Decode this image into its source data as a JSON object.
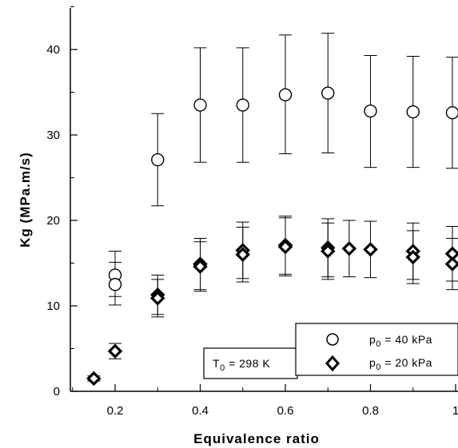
{
  "chart_data": {
    "type": "scatter",
    "xlabel": "Equivalence ratio",
    "ylabel": "Kg (MPa.m/s)",
    "xlim": [
      0.1,
      1.0
    ],
    "ylim": [
      0,
      45
    ],
    "x_ticks": [
      "0.2",
      "0.4",
      "0.6",
      "0.8",
      "1"
    ],
    "y_ticks": [
      "0",
      "10",
      "20",
      "30",
      "40"
    ],
    "grid": false,
    "legend_position": "bottom-right",
    "annotation": {
      "text": "T",
      "sub": "0",
      "rest": " = 298 K"
    },
    "series": [
      {
        "name": "p0 = 40 kPa",
        "label_main": "p",
        "label_sub": "0",
        "label_rest": " = 40 kPa",
        "marker": "circle",
        "points": [
          {
            "x": 0.2,
            "y": 13.6,
            "err_low": 11.1,
            "err_high": 16.4
          },
          {
            "x": 0.2,
            "y": 12.5,
            "err_low": 10.1,
            "err_high": 15.1
          },
          {
            "x": 0.3,
            "y": 27.1,
            "err_low": 21.7,
            "err_high": 32.5
          },
          {
            "x": 0.4,
            "y": 33.5,
            "err_low": 26.8,
            "err_high": 40.2
          },
          {
            "x": 0.5,
            "y": 33.5,
            "err_low": 26.8,
            "err_high": 40.2
          },
          {
            "x": 0.6,
            "y": 34.7,
            "err_low": 27.8,
            "err_high": 41.7
          },
          {
            "x": 0.7,
            "y": 34.9,
            "err_low": 27.9,
            "err_high": 41.9
          },
          {
            "x": 0.8,
            "y": 32.8,
            "err_low": 26.2,
            "err_high": 39.3
          },
          {
            "x": 0.9,
            "y": 32.7,
            "err_low": 26.2,
            "err_high": 39.2
          },
          {
            "x": 1.0,
            "y": 32.6,
            "err_low": 26.1,
            "err_high": 39.1
          }
        ]
      },
      {
        "name": "p0 = 20 kPa",
        "label_main": "p",
        "label_sub": "0",
        "label_rest": " = 20 kPa",
        "marker": "diamond",
        "points": [
          {
            "x": 0.15,
            "y": 1.5,
            "err_low": 1.2,
            "err_high": 1.8
          },
          {
            "x": 0.2,
            "y": 4.7,
            "err_low": 3.8,
            "err_high": 5.6
          },
          {
            "x": 0.3,
            "y": 11.3,
            "err_low": 9.0,
            "err_high": 13.6
          },
          {
            "x": 0.3,
            "y": 10.9,
            "err_low": 8.7,
            "err_high": 13.1
          },
          {
            "x": 0.4,
            "y": 14.9,
            "err_low": 11.9,
            "err_high": 17.9
          },
          {
            "x": 0.4,
            "y": 14.6,
            "err_low": 11.7,
            "err_high": 17.5
          },
          {
            "x": 0.5,
            "y": 16.5,
            "err_low": 13.2,
            "err_high": 19.8
          },
          {
            "x": 0.5,
            "y": 16.0,
            "err_low": 12.8,
            "err_high": 19.2
          },
          {
            "x": 0.6,
            "y": 17.1,
            "err_low": 13.7,
            "err_high": 20.5
          },
          {
            "x": 0.6,
            "y": 16.9,
            "err_low": 13.5,
            "err_high": 20.3
          },
          {
            "x": 0.7,
            "y": 16.8,
            "err_low": 13.4,
            "err_high": 20.2
          },
          {
            "x": 0.7,
            "y": 16.4,
            "err_low": 13.1,
            "err_high": 19.7
          },
          {
            "x": 0.75,
            "y": 16.7,
            "err_low": 13.4,
            "err_high": 20.0
          },
          {
            "x": 0.8,
            "y": 16.6,
            "err_low": 13.3,
            "err_high": 19.9
          },
          {
            "x": 0.9,
            "y": 16.4,
            "err_low": 13.1,
            "err_high": 19.7
          },
          {
            "x": 0.9,
            "y": 15.7,
            "err_low": 12.6,
            "err_high": 18.8
          },
          {
            "x": 1.0,
            "y": 16.1,
            "err_low": 12.9,
            "err_high": 19.3
          },
          {
            "x": 1.0,
            "y": 14.9,
            "err_low": 11.9,
            "err_high": 17.9
          }
        ]
      }
    ]
  }
}
